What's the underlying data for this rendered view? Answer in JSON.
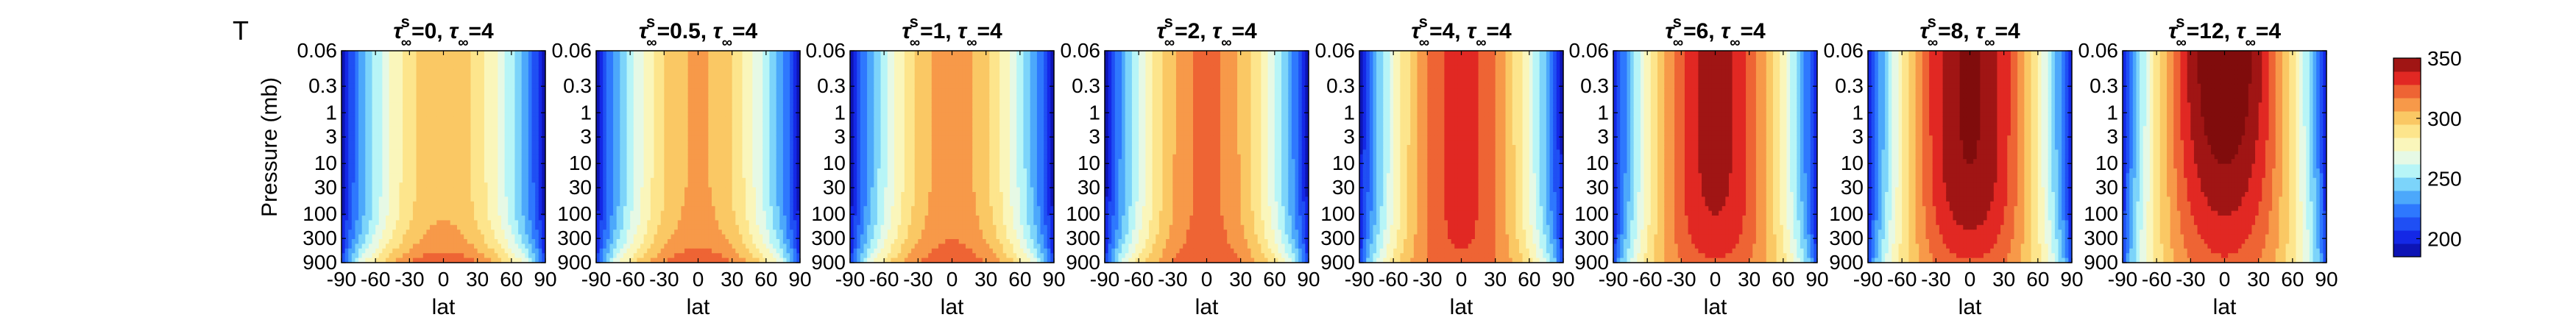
{
  "figure": {
    "label": "T",
    "ylabel": "Pressure (mb)",
    "xlabel": "lat",
    "xticks": [
      "-90",
      "-60",
      "-30",
      "0",
      "30",
      "60",
      "90"
    ],
    "yticks": [
      "0.06",
      "0.3",
      "1",
      "3",
      "10",
      "30",
      "100",
      "300",
      "900"
    ],
    "colorbar": {
      "min": 185,
      "max": 350,
      "ticks": [
        "200",
        "250",
        "300",
        "350"
      ]
    },
    "colors": {
      "cold": "#0a0a9c",
      "blue": "#1f5bff",
      "cyan": "#aef4fb",
      "pale": "#f4fae0",
      "yellow": "#fff3a0",
      "orange": "#f7a24a",
      "red": "#e9302a",
      "dark_red": "#820d0d"
    }
  },
  "chart_data": [
    {
      "type": "heatmap",
      "title_a": "=0, ",
      "title_b": "=4",
      "tau_s": 0,
      "tau_inf": 4,
      "x": [
        -90,
        90
      ],
      "ylim": [
        0.06,
        900
      ],
      "yscale": "log",
      "zlim": [
        185,
        350
      ]
    },
    {
      "type": "heatmap",
      "title_a": "=0.5, ",
      "title_b": "=4",
      "tau_s": 0.5,
      "tau_inf": 4,
      "x": [
        -90,
        90
      ],
      "ylim": [
        0.06,
        900
      ],
      "yscale": "log",
      "zlim": [
        185,
        350
      ]
    },
    {
      "type": "heatmap",
      "title_a": "=1, ",
      "title_b": "=4",
      "tau_s": 1,
      "tau_inf": 4,
      "x": [
        -90,
        90
      ],
      "ylim": [
        0.06,
        900
      ],
      "yscale": "log",
      "zlim": [
        185,
        350
      ]
    },
    {
      "type": "heatmap",
      "title_a": "=2, ",
      "title_b": "=4",
      "tau_s": 2,
      "tau_inf": 4,
      "x": [
        -90,
        90
      ],
      "ylim": [
        0.06,
        900
      ],
      "yscale": "log",
      "zlim": [
        185,
        350
      ]
    },
    {
      "type": "heatmap",
      "title_a": "=4, ",
      "title_b": "=4",
      "tau_s": 4,
      "tau_inf": 4,
      "x": [
        -90,
        90
      ],
      "ylim": [
        0.06,
        900
      ],
      "yscale": "log",
      "zlim": [
        185,
        350
      ]
    },
    {
      "type": "heatmap",
      "title_a": "=6, ",
      "title_b": "=4",
      "tau_s": 6,
      "tau_inf": 4,
      "x": [
        -90,
        90
      ],
      "ylim": [
        0.06,
        900
      ],
      "yscale": "log",
      "zlim": [
        185,
        350
      ]
    },
    {
      "type": "heatmap",
      "title_a": "=8, ",
      "title_b": "=4",
      "tau_s": 8,
      "tau_inf": 4,
      "x": [
        -90,
        90
      ],
      "ylim": [
        0.06,
        900
      ],
      "yscale": "log",
      "zlim": [
        185,
        350
      ]
    },
    {
      "type": "heatmap",
      "title_a": "=12, ",
      "title_b": "=4",
      "tau_s": 12,
      "tau_inf": 4,
      "x": [
        -90,
        90
      ],
      "ylim": [
        0.06,
        900
      ],
      "yscale": "log",
      "zlim": [
        185,
        350
      ]
    }
  ]
}
